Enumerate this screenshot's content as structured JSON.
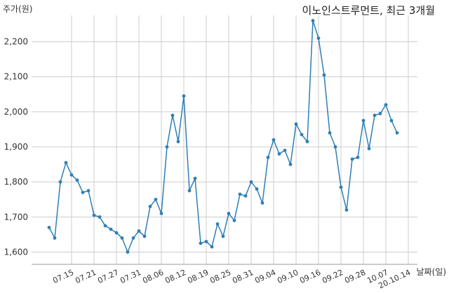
{
  "chart_data": {
    "type": "line",
    "title": "이노인스트루먼트, 최근 3개월",
    "ylabel": "주가(원)",
    "xlabel": "날짜(일)",
    "ylim": [
      1565,
      2275
    ],
    "yticks": [
      1600,
      1700,
      1800,
      1900,
      2000,
      2100,
      2200
    ],
    "ytick_labels": [
      "1,600",
      "1,700",
      "1,800",
      "1,900",
      "2,000",
      "2,100",
      "2,200"
    ],
    "grid": true,
    "xtick_labels": [
      "07.15",
      "07.21",
      "07.27",
      "07.31",
      "08.06",
      "08.12",
      "08.19",
      "08.25",
      "08.31",
      "09.04",
      "09.10",
      "09.16",
      "09.22",
      "09.28",
      "10.07",
      "20.10.14"
    ],
    "xtick_index": [
      4,
      8,
      12,
      16,
      20,
      24,
      28,
      32,
      36,
      40,
      44,
      48,
      52,
      56,
      60,
      64
    ],
    "color": "#2e7fb4",
    "values": [
      1670,
      1640,
      1800,
      1855,
      1820,
      1805,
      1770,
      1775,
      1705,
      1700,
      1675,
      1665,
      1655,
      1640,
      1600,
      1640,
      1660,
      1645,
      1730,
      1750,
      1710,
      1900,
      1990,
      1915,
      2045,
      1775,
      1810,
      1625,
      1630,
      1615,
      1680,
      1645,
      1710,
      1690,
      1765,
      1760,
      1800,
      1780,
      1740,
      1870,
      1920,
      1880,
      1890,
      1850,
      1965,
      1935,
      1915,
      2260,
      2210,
      2105,
      1940,
      1900,
      1785,
      1720,
      1865,
      1870,
      1975,
      1895,
      1990,
      1995,
      2020,
      1975,
      1940
    ]
  }
}
